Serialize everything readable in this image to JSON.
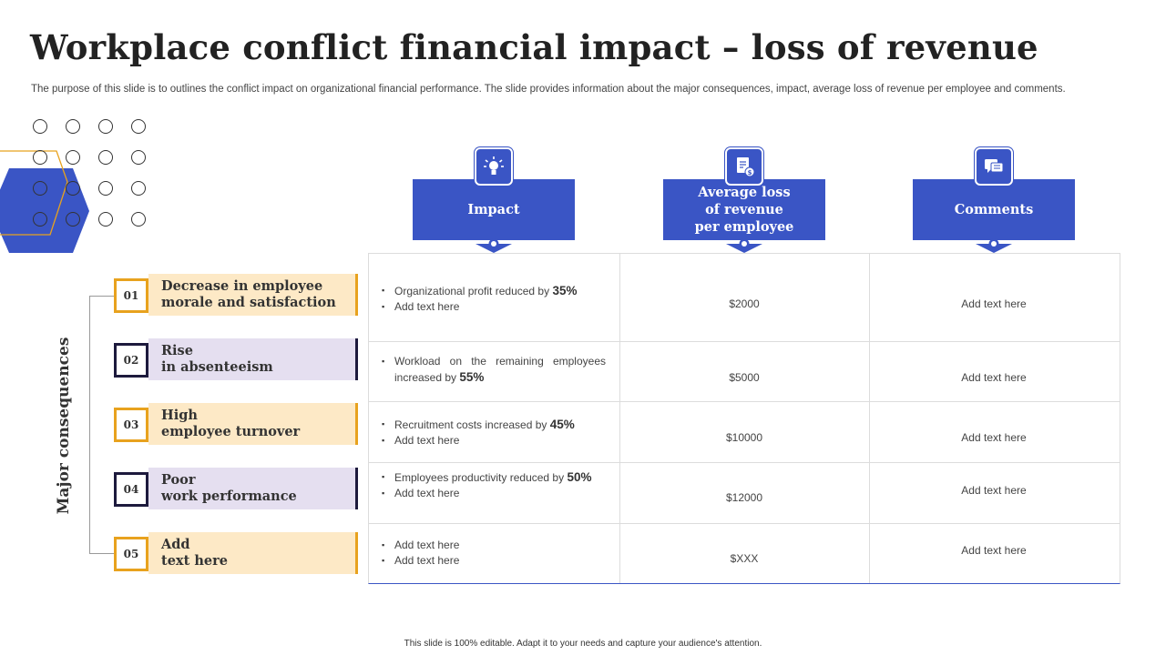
{
  "slide": {
    "title": "Workplace conflict financial impact – loss of revenue",
    "subtitle": "The purpose of this slide is to outlines the conflict impact on organizational financial performance. The slide provides information about the major consequences, impact, average loss of revenue per employee and comments.",
    "footer": "This slide is 100% editable.  Adapt it to your needs and capture your audience's attention."
  },
  "colors": {
    "accent_blue": "#3a55c5",
    "yellow": "#fde9c6",
    "yellow_border": "#e8a21e",
    "purple": "#e5dff0",
    "purple_border": "#1d1a3d"
  },
  "consequences": {
    "label": "Major consequences",
    "items": [
      {
        "num": "01",
        "text": "Decrease in employee\nmorale and satisfaction",
        "style": "yellow"
      },
      {
        "num": "02",
        "text": "Rise\nin absenteeism",
        "style": "purple"
      },
      {
        "num": "03",
        "text": "High\nemployee turnover",
        "style": "yellow"
      },
      {
        "num": "04",
        "text": "Poor\nwork performance",
        "style": "purple"
      },
      {
        "num": "05",
        "text": "Add\ntext here",
        "style": "yellow"
      }
    ]
  },
  "columns": [
    {
      "label": "Impact",
      "icon": "lightbulb-icon"
    },
    {
      "label": "Average loss\nof revenue\nper employee",
      "icon": "money-document-icon"
    },
    {
      "label": "Comments",
      "icon": "chat-bubbles-icon"
    }
  ],
  "rows": [
    {
      "impact": [
        {
          "text": "Organizational profit reduced by ",
          "bold": "35%"
        },
        {
          "text": "Add text here",
          "bold": ""
        }
      ],
      "loss": "$2000",
      "comment": "Add text here"
    },
    {
      "impact": [
        {
          "text": "Workload on the remaining employees increased by ",
          "bold": "55%"
        }
      ],
      "loss": "$5000",
      "comment": "Add text here"
    },
    {
      "impact": [
        {
          "text": "Recruitment costs increased by ",
          "bold": "45%"
        },
        {
          "text": "Add text here",
          "bold": ""
        }
      ],
      "loss": "$10000",
      "comment": "Add text here"
    },
    {
      "impact": [
        {
          "text": "Employees productivity reduced by ",
          "bold": "50%"
        },
        {
          "text": "Add text here",
          "bold": ""
        }
      ],
      "loss": "$12000",
      "comment": "Add text here"
    },
    {
      "impact": [
        {
          "text": "Add text here",
          "bold": ""
        },
        {
          "text": "Add text here",
          "bold": ""
        }
      ],
      "loss": "$XXX",
      "comment": "Add text here"
    }
  ]
}
